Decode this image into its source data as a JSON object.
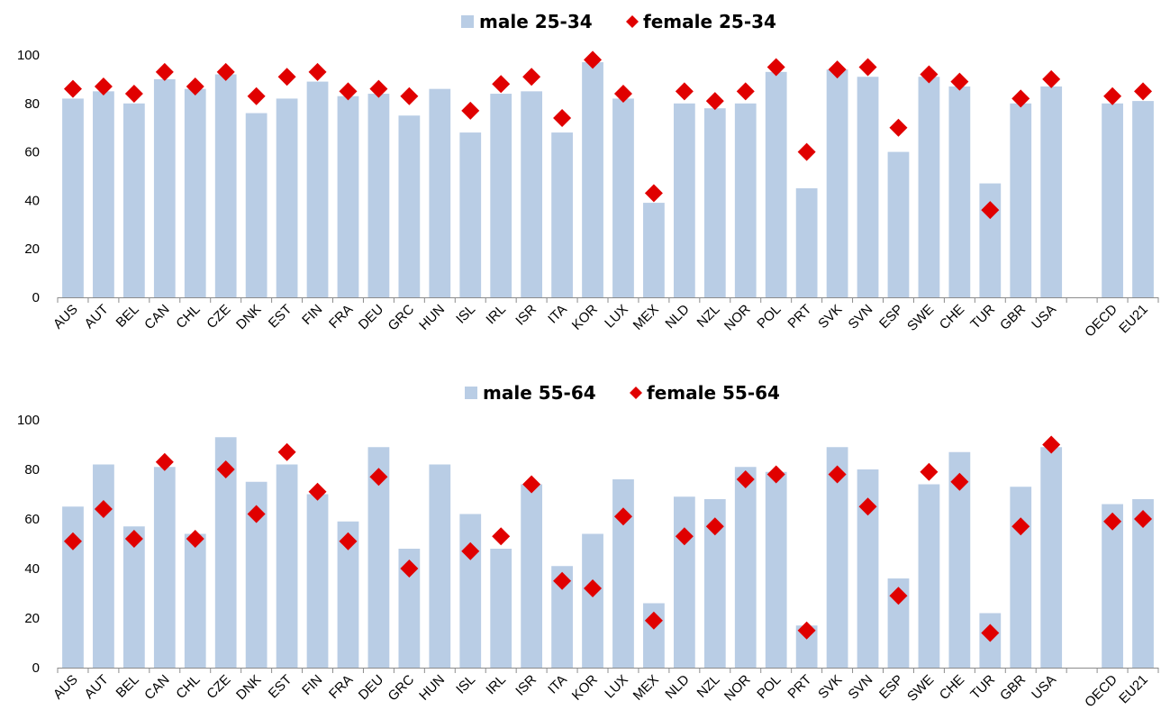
{
  "chart_data": [
    {
      "type": "bar",
      "categories": [
        "AUS",
        "AUT",
        "BEL",
        "CAN",
        "CHL",
        "CZE",
        "DNK",
        "EST",
        "FIN",
        "FRA",
        "DEU",
        "GRC",
        "HUN",
        "ISL",
        "IRL",
        "ISR",
        "ITA",
        "KOR",
        "LUX",
        "MEX",
        "NLD",
        "NZL",
        "NOR",
        "POL",
        "PRT",
        "SVK",
        "SVN",
        "ESP",
        "SWE",
        "CHE",
        "TUR",
        "GBR",
        "USA",
        "",
        "OECD",
        "EU21"
      ],
      "series": [
        {
          "name": "male 25-34",
          "mark": "bar",
          "color": "#b9cde5",
          "values": [
            82,
            85,
            80,
            90,
            86,
            92,
            76,
            82,
            89,
            83,
            84,
            75,
            86,
            68,
            84,
            85,
            68,
            97,
            82,
            39,
            80,
            78,
            80,
            93,
            45,
            94,
            91,
            60,
            91,
            87,
            47,
            80,
            87,
            null,
            80,
            81
          ]
        },
        {
          "name": "female 25-34",
          "mark": "diamond",
          "color": "#e00000",
          "values": [
            86,
            87,
            84,
            93,
            87,
            93,
            83,
            91,
            93,
            85,
            86,
            83,
            null,
            77,
            88,
            91,
            74,
            98,
            84,
            43,
            85,
            81,
            85,
            95,
            60,
            94,
            95,
            70,
            92,
            89,
            36,
            82,
            90,
            null,
            83,
            85
          ]
        }
      ],
      "ylim": [
        0,
        100
      ],
      "yticks": [
        "0",
        "20",
        "40",
        "60",
        "80",
        "100"
      ],
      "grid": false,
      "legend": "top-center"
    },
    {
      "type": "bar",
      "categories": [
        "AUS",
        "AUT",
        "BEL",
        "CAN",
        "CHL",
        "CZE",
        "DNK",
        "EST",
        "FIN",
        "FRA",
        "DEU",
        "GRC",
        "HUN",
        "ISL",
        "IRL",
        "ISR",
        "ITA",
        "KOR",
        "LUX",
        "MEX",
        "NLD",
        "NZL",
        "NOR",
        "POL",
        "PRT",
        "SVK",
        "SVN",
        "ESP",
        "SWE",
        "CHE",
        "TUR",
        "GBR",
        "USA",
        "",
        "OECD",
        "EU21"
      ],
      "series": [
        {
          "name": "male 55-64",
          "mark": "bar",
          "color": "#b9cde5",
          "values": [
            65,
            82,
            57,
            81,
            54,
            93,
            75,
            82,
            70,
            59,
            89,
            48,
            82,
            62,
            48,
            74,
            41,
            54,
            76,
            26,
            69,
            68,
            81,
            79,
            17,
            89,
            80,
            36,
            74,
            87,
            22,
            73,
            89,
            null,
            66,
            68
          ]
        },
        {
          "name": "female 55-64",
          "mark": "diamond",
          "color": "#e00000",
          "values": [
            51,
            64,
            52,
            83,
            52,
            80,
            62,
            87,
            71,
            51,
            77,
            40,
            null,
            47,
            53,
            74,
            35,
            32,
            61,
            19,
            53,
            57,
            76,
            78,
            15,
            78,
            65,
            29,
            79,
            75,
            14,
            57,
            90,
            null,
            59,
            60
          ]
        }
      ],
      "ylim": [
        0,
        100
      ],
      "yticks": [
        "0",
        "20",
        "40",
        "60",
        "80",
        "100"
      ],
      "grid": false,
      "legend": "top-center"
    }
  ]
}
